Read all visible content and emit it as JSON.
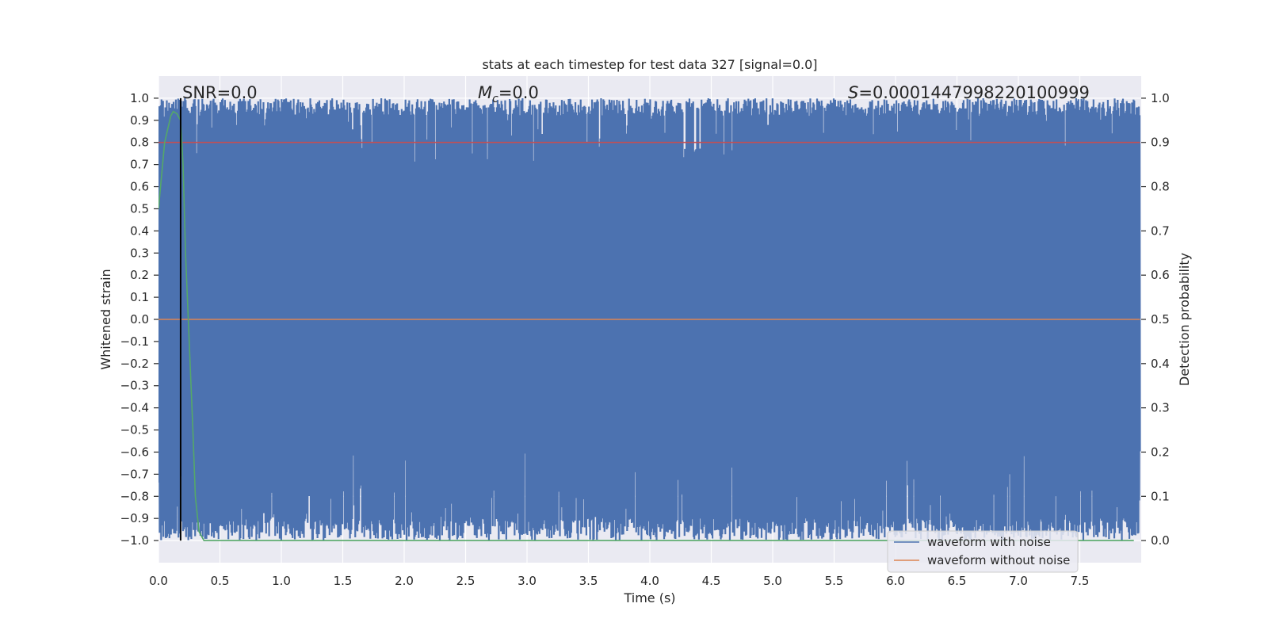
{
  "chart_data": {
    "type": "line",
    "title": "stats at each timestep for test data 327 [signal=0.0]",
    "xlabel": "Time (s)",
    "ylabel": "Whitened strain",
    "y2label": "Detection probability",
    "xlim": [
      0.0,
      8.0
    ],
    "ylim": [
      -1.1,
      1.1
    ],
    "y2lim": [
      -0.05,
      1.05
    ],
    "x_ticks": [
      "0.0",
      "0.5",
      "1.0",
      "1.5",
      "2.0",
      "2.5",
      "3.0",
      "3.5",
      "4.0",
      "4.5",
      "5.0",
      "5.5",
      "6.0",
      "6.5",
      "7.0",
      "7.5"
    ],
    "y_ticks": [
      "1.0",
      "0.9",
      "0.8",
      "0.7",
      "0.6",
      "0.5",
      "0.4",
      "0.3",
      "0.2",
      "0.1",
      "0.0",
      "−0.1",
      "−0.2",
      "−0.3",
      "−0.4",
      "−0.5",
      "−0.6",
      "−0.7",
      "−0.8",
      "−0.9",
      "−1.0"
    ],
    "y2_ticks": [
      "1.0",
      "0.9",
      "0.8",
      "0.7",
      "0.6",
      "0.5",
      "0.4",
      "0.3",
      "0.2",
      "0.1",
      "0.0"
    ],
    "grid": true,
    "legend_position": "bottom-right",
    "annotations": {
      "snr": "SNR=0.0",
      "mc_symbol": "M",
      "mc_subscript": "c",
      "mc_value": "=0.0",
      "s_symbol": "S",
      "s_value": "=0.0001447998220100999"
    },
    "marker_line_x": 0.18,
    "series": [
      {
        "name": "waveform with noise",
        "color": "#4c72b0",
        "description_range": [
          -1.0,
          1.0
        ]
      },
      {
        "name": "waveform without noise",
        "color": "#dd8452",
        "x": [
          0.0,
          7.99
        ],
        "y": [
          0.0,
          0.0
        ]
      },
      {
        "name": "",
        "color": "#c44e52",
        "axis": "right",
        "x": [
          0.0,
          7.99
        ],
        "y": [
          0.9,
          0.9
        ]
      },
      {
        "name": "",
        "color": "#55a868",
        "axis": "right",
        "x": [
          0.0,
          0.05,
          0.1,
          0.12,
          0.15,
          0.18,
          0.2,
          0.22,
          0.25,
          0.28,
          0.3,
          0.33,
          0.37,
          0.45,
          1.0,
          2.0,
          3.0,
          4.0,
          5.0,
          6.0,
          7.0,
          7.94
        ],
        "y": [
          0.75,
          0.9,
          0.96,
          0.97,
          0.965,
          0.95,
          0.85,
          0.65,
          0.45,
          0.25,
          0.1,
          0.02,
          0.0,
          0.0,
          0.0,
          0.0,
          0.0,
          0.0,
          0.0,
          0.0,
          0.0,
          0.0
        ]
      }
    ]
  }
}
